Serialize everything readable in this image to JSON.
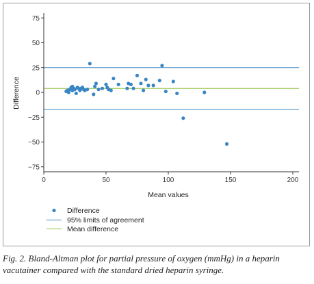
{
  "chart_data": {
    "type": "scatter",
    "xlabel": "Mean values",
    "ylabel": "Difference",
    "xlim": [
      0,
      200
    ],
    "ylim": [
      -80,
      80
    ],
    "x_ticks": [
      0,
      50,
      100,
      150,
      200
    ],
    "y_ticks": [
      -75,
      -50,
      -25,
      0,
      25,
      50,
      75
    ],
    "legend": [
      "Difference",
      "95% limits of agreement",
      "Mean difference"
    ],
    "legend_position": "bottom-left",
    "colors": {
      "points": "#3a86c4",
      "limits": "#3a86c4",
      "mean": "#8dbf3a"
    },
    "series": [
      {
        "name": "Difference",
        "points": [
          [
            18,
            1
          ],
          [
            19,
            2
          ],
          [
            20,
            0
          ],
          [
            21,
            3
          ],
          [
            22,
            5
          ],
          [
            23,
            6
          ],
          [
            23,
            2
          ],
          [
            24,
            4
          ],
          [
            25,
            3
          ],
          [
            26,
            -1
          ],
          [
            27,
            5
          ],
          [
            28,
            4
          ],
          [
            29,
            2
          ],
          [
            30,
            4
          ],
          [
            31,
            5
          ],
          [
            32,
            3
          ],
          [
            33,
            2
          ],
          [
            35,
            3
          ],
          [
            37,
            29
          ],
          [
            40,
            -2
          ],
          [
            41,
            6
          ],
          [
            42,
            9
          ],
          [
            44,
            3
          ],
          [
            47,
            4
          ],
          [
            50,
            8
          ],
          [
            51,
            5
          ],
          [
            52,
            3
          ],
          [
            54,
            2
          ],
          [
            56,
            14
          ],
          [
            60,
            8
          ],
          [
            67,
            4
          ],
          [
            68,
            9
          ],
          [
            70,
            8
          ],
          [
            72,
            4
          ],
          [
            75,
            17
          ],
          [
            78,
            9
          ],
          [
            80,
            2
          ],
          [
            82,
            13
          ],
          [
            84,
            7
          ],
          [
            88,
            7
          ],
          [
            93,
            12
          ],
          [
            95,
            27
          ],
          [
            98,
            1
          ],
          [
            104,
            11
          ],
          [
            107,
            -1
          ],
          [
            112,
            -26
          ],
          [
            129,
            0
          ],
          [
            147,
            -52
          ]
        ]
      }
    ],
    "reference_lines": [
      {
        "name": "95% limits of agreement",
        "y": 25
      },
      {
        "name": "95% limits of agreement",
        "y": -17
      },
      {
        "name": "Mean difference",
        "y": 4
      }
    ]
  },
  "caption": "Fig. 2. Bland-Altman plot for partial pressure of oxygen (mmHg) in a heparin vacutainer compared with the standard dried heparin syringe."
}
